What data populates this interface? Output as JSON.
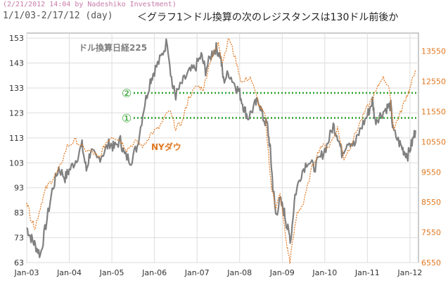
{
  "header": {
    "stamp": "(2/21/2012 14:04 by Nadeshiko Investment)",
    "range": "1/1/03-2/17/12 (day)",
    "title": "＜グラフ1＞ドル換算の次のレジスタンスは130ドル前後か"
  },
  "chart_data": {
    "type": "line",
    "title": "＜グラフ1＞ドル換算の次のレジスタンスは130ドル前後か",
    "period": "1/1/03-2/17/12 (day)",
    "x_ticks": [
      "Jan-03",
      "Jan-04",
      "Jan-05",
      "Jan-06",
      "Jan-07",
      "Jan-08",
      "Jan-09",
      "Jan-10",
      "Jan-11",
      "Jan-12"
    ],
    "x_range": [
      2003.0,
      2012.2
    ],
    "y_left": {
      "range": [
        63,
        155
      ],
      "ticks": [
        63,
        73,
        83,
        93,
        103,
        113,
        123,
        133,
        143,
        153
      ]
    },
    "y_right": {
      "range": [
        6550,
        14150
      ],
      "ticks": [
        6550,
        7550,
        8550,
        9550,
        10550,
        11550,
        12550,
        13550
      ]
    },
    "grid": true,
    "series": [
      {
        "name": "ドル換算日経225",
        "axis": "left",
        "color": "#808080",
        "points": [
          [
            2003.0,
            77
          ],
          [
            2003.1,
            73
          ],
          [
            2003.2,
            70
          ],
          [
            2003.32,
            66
          ],
          [
            2003.45,
            78
          ],
          [
            2003.6,
            92
          ],
          [
            2003.75,
            101
          ],
          [
            2003.9,
            97
          ],
          [
            2004.0,
            100
          ],
          [
            2004.15,
            104
          ],
          [
            2004.3,
            110
          ],
          [
            2004.4,
            100
          ],
          [
            2004.5,
            108
          ],
          [
            2004.65,
            104
          ],
          [
            2004.8,
            107
          ],
          [
            2004.95,
            111
          ],
          [
            2005.05,
            109
          ],
          [
            2005.2,
            112
          ],
          [
            2005.3,
            106
          ],
          [
            2005.45,
            104
          ],
          [
            2005.6,
            110
          ],
          [
            2005.75,
            125
          ],
          [
            2005.9,
            136
          ],
          [
            2006.0,
            140
          ],
          [
            2006.15,
            145
          ],
          [
            2006.3,
            152
          ],
          [
            2006.42,
            134
          ],
          [
            2006.5,
            130
          ],
          [
            2006.65,
            135
          ],
          [
            2006.8,
            139
          ],
          [
            2006.95,
            141
          ],
          [
            2007.1,
            146
          ],
          [
            2007.2,
            140
          ],
          [
            2007.35,
            147
          ],
          [
            2007.45,
            149
          ],
          [
            2007.55,
            146
          ],
          [
            2007.62,
            136
          ],
          [
            2007.75,
            139
          ],
          [
            2007.9,
            134
          ],
          [
            2008.0,
            131
          ],
          [
            2008.1,
            125
          ],
          [
            2008.2,
            121
          ],
          [
            2008.35,
            126
          ],
          [
            2008.45,
            128
          ],
          [
            2008.55,
            121
          ],
          [
            2008.65,
            118
          ],
          [
            2008.72,
            108
          ],
          [
            2008.78,
            94
          ],
          [
            2008.85,
            82
          ],
          [
            2008.95,
            88
          ],
          [
            2009.05,
            83
          ],
          [
            2009.12,
            77
          ],
          [
            2009.2,
            72
          ],
          [
            2009.3,
            90
          ],
          [
            2009.45,
            99
          ],
          [
            2009.6,
            104
          ],
          [
            2009.75,
            101
          ],
          [
            2009.9,
            105
          ],
          [
            2010.05,
            110
          ],
          [
            2010.2,
            118
          ],
          [
            2010.3,
            114
          ],
          [
            2010.4,
            107
          ],
          [
            2010.55,
            112
          ],
          [
            2010.7,
            110
          ],
          [
            2010.85,
            117
          ],
          [
            2011.0,
            122
          ],
          [
            2011.12,
            128
          ],
          [
            2011.18,
            120
          ],
          [
            2011.3,
            122
          ],
          [
            2011.45,
            125
          ],
          [
            2011.55,
            126
          ],
          [
            2011.6,
            116
          ],
          [
            2011.75,
            111
          ],
          [
            2011.85,
            108
          ],
          [
            2011.95,
            106
          ],
          [
            2012.05,
            111
          ],
          [
            2012.13,
            116
          ]
        ]
      },
      {
        "name": "NYダウ",
        "axis": "right",
        "color": "#e07820",
        "points": [
          [
            2003.0,
            8600
          ],
          [
            2003.1,
            8000
          ],
          [
            2003.2,
            7700
          ],
          [
            2003.32,
            8400
          ],
          [
            2003.45,
            9000
          ],
          [
            2003.6,
            9300
          ],
          [
            2003.75,
            9600
          ],
          [
            2003.95,
            10400
          ],
          [
            2004.15,
            10600
          ],
          [
            2004.35,
            10300
          ],
          [
            2004.55,
            10200
          ],
          [
            2004.7,
            10000
          ],
          [
            2004.85,
            10500
          ],
          [
            2005.0,
            10750
          ],
          [
            2005.2,
            10600
          ],
          [
            2005.35,
            10300
          ],
          [
            2005.55,
            10550
          ],
          [
            2005.75,
            10400
          ],
          [
            2005.9,
            10800
          ],
          [
            2006.1,
            11000
          ],
          [
            2006.35,
            11600
          ],
          [
            2006.5,
            11000
          ],
          [
            2006.65,
            11200
          ],
          [
            2006.8,
            12000
          ],
          [
            2007.0,
            12400
          ],
          [
            2007.15,
            12300
          ],
          [
            2007.3,
            13200
          ],
          [
            2007.5,
            13800
          ],
          [
            2007.6,
            13200
          ],
          [
            2007.75,
            14000
          ],
          [
            2007.9,
            13300
          ],
          [
            2008.05,
            12500
          ],
          [
            2008.25,
            12700
          ],
          [
            2008.45,
            11800
          ],
          [
            2008.6,
            11400
          ],
          [
            2008.75,
            9000
          ],
          [
            2008.85,
            8400
          ],
          [
            2008.95,
            8800
          ],
          [
            2009.1,
            7200
          ],
          [
            2009.18,
            6600
          ],
          [
            2009.35,
            8200
          ],
          [
            2009.5,
            8500
          ],
          [
            2009.7,
            9700
          ],
          [
            2009.9,
            10400
          ],
          [
            2010.1,
            10400
          ],
          [
            2010.3,
            11000
          ],
          [
            2010.45,
            10000
          ],
          [
            2010.6,
            10400
          ],
          [
            2010.8,
            11100
          ],
          [
            2011.0,
            11700
          ],
          [
            2011.2,
            12200
          ],
          [
            2011.35,
            12700
          ],
          [
            2011.5,
            12400
          ],
          [
            2011.62,
            11000
          ],
          [
            2011.75,
            11400
          ],
          [
            2011.9,
            12000
          ],
          [
            2012.0,
            12300
          ],
          [
            2012.13,
            12950
          ]
        ]
      }
    ],
    "resistance_lines": [
      {
        "label": "①",
        "value": 121,
        "color": "#2ca02c"
      },
      {
        "label": "②",
        "value": 131,
        "color": "#2ca02c"
      }
    ]
  }
}
